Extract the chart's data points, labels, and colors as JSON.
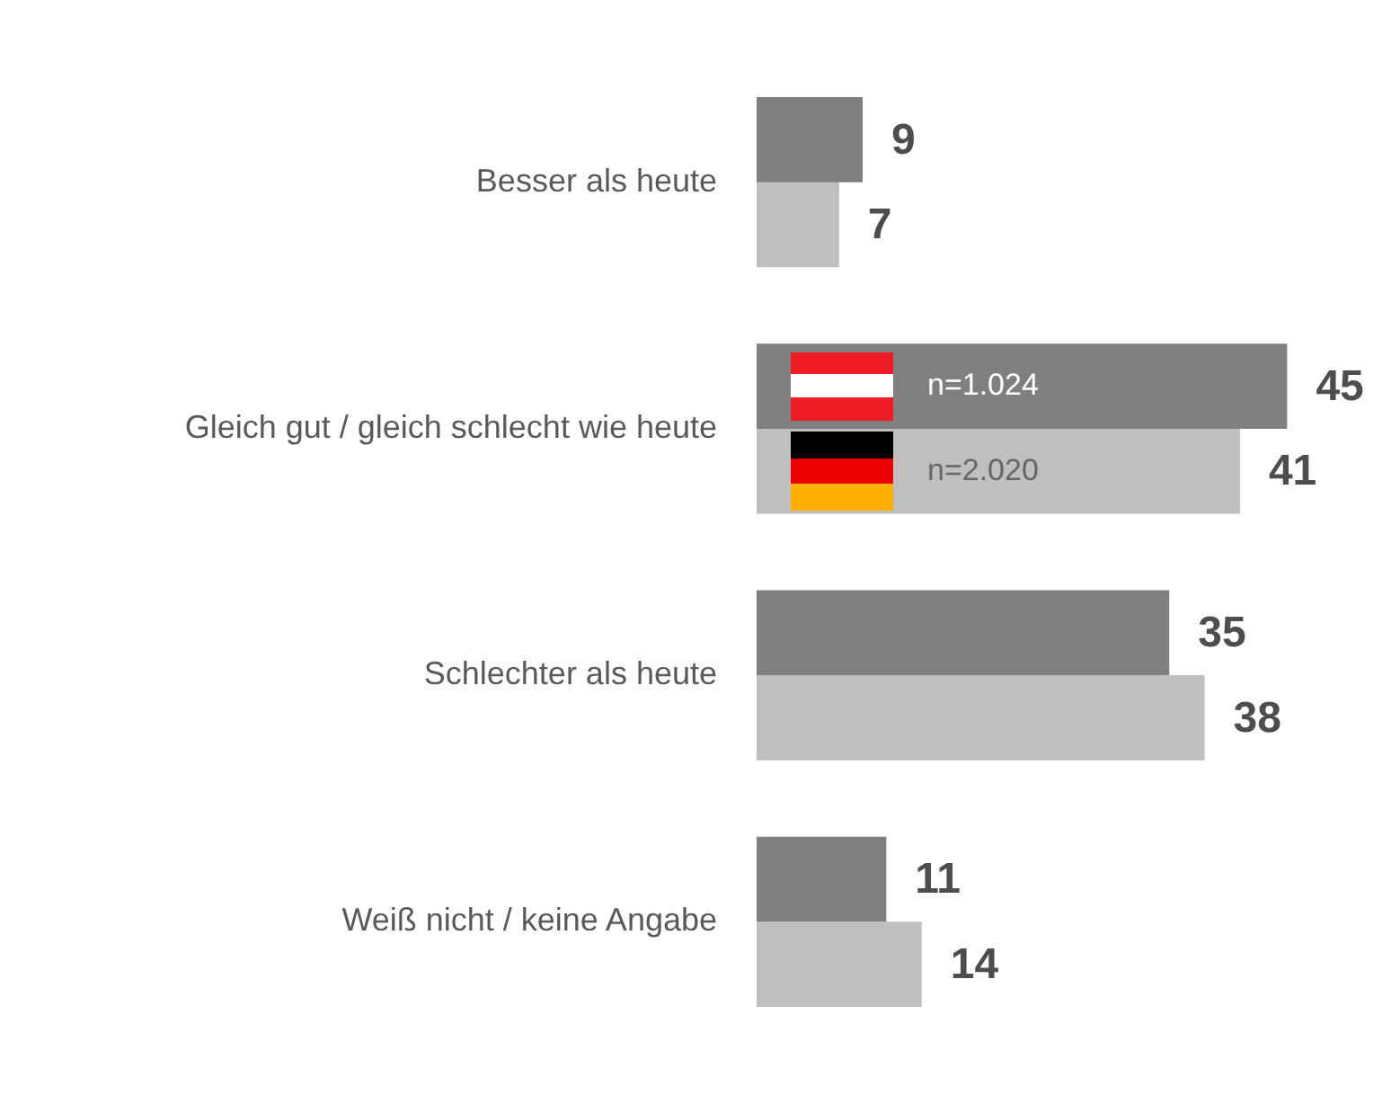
{
  "chart_data": {
    "type": "bar",
    "orientation": "horizontal",
    "categories": [
      "Besser als heute",
      "Gleich gut / gleich schlecht wie heute",
      "Schlechter als heute",
      "Weiß nicht / keine Angabe"
    ],
    "series": [
      {
        "name": "n=1.024",
        "color": "#7f7f7f",
        "values": [
          9,
          45,
          35,
          11
        ]
      },
      {
        "name": "n=2.020",
        "color": "#bfbfbf",
        "values": [
          7,
          41,
          38,
          14
        ]
      }
    ],
    "data_labels": true,
    "grid": false,
    "tick_labels": "y"
  }
}
